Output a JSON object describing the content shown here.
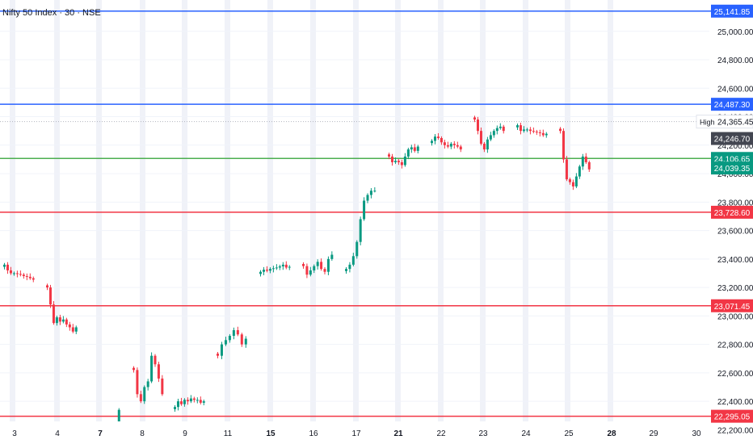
{
  "symbol": {
    "title": "Nifty 50 Index · 30 · NSE"
  },
  "colors": {
    "up": "#089981",
    "down": "#f23645",
    "blue_line": "#2962ff",
    "red_line": "#f23645",
    "green_line": "#4caf50",
    "grid": "#f0f3fa",
    "session_band": "#e9ecf5",
    "axis_text": "#131722"
  },
  "chart_data": {
    "type": "candlestick",
    "title": "Nifty 50 Index · 30 · NSE",
    "ylim": [
      22100,
      25220
    ],
    "y_ticks": [
      "25,000.00",
      "24,800.00",
      "24,600.00",
      "24,400.00",
      "24,200.00",
      "24,000.00",
      "23,800.00",
      "23,600.00",
      "23,400.00",
      "23,200.00",
      "23,000.00",
      "22,800.00",
      "22,600.00",
      "22,400.00",
      "22,200.00"
    ],
    "y_tick_values": [
      25000,
      24800,
      24600,
      24400,
      24200,
      24000,
      23800,
      23600,
      23400,
      23200,
      23000,
      22800,
      22600,
      22400,
      22200
    ],
    "x_ticks": [
      "3",
      "4",
      "7",
      "8",
      "9",
      "11",
      "15",
      "16",
      "17",
      "21",
      "22",
      "23",
      "24",
      "25",
      "28",
      "29",
      "30"
    ],
    "x_ticks_bold": [
      "7",
      "15",
      "21",
      "28"
    ],
    "horizontal_levels": [
      {
        "value": 25141.85,
        "label": "25,141.85",
        "color": "blue"
      },
      {
        "value": 24487.3,
        "label": "24,487.30",
        "color": "blue"
      },
      {
        "value": 24106.65,
        "label": "24,106.65",
        "color": "green"
      },
      {
        "value": 23728.6,
        "label": "23,728.60",
        "color": "red"
      },
      {
        "value": 23071.45,
        "label": "23,071.45",
        "color": "red"
      },
      {
        "value": 22295.05,
        "label": "22,295.05",
        "color": "red"
      }
    ],
    "high": {
      "value": 24365.45,
      "label": "High",
      "value_label": "24,365.45"
    },
    "price_markers": [
      {
        "value": 24246.7,
        "label": "24,246.70",
        "color": "dark"
      },
      {
        "value": 24039.35,
        "label": "24,039.35",
        "color": "teal"
      }
    ],
    "candle_sessions": [
      [
        23360,
        23320,
        23300,
        23300,
        23295,
        23290,
        23280,
        23275,
        23265,
        23255
      ],
      [
        23200,
        23080,
        22950,
        22990,
        22960,
        22975,
        22940,
        22920,
        22890,
        22920
      ],
      [
        22000,
        22130,
        22030,
        22070,
        22010,
        22000,
        22050,
        22100,
        22200,
        22340
      ],
      [
        22620,
        22450,
        22400,
        22500,
        22540,
        22720,
        22660,
        22560,
        22450
      ],
      [
        22360,
        22400,
        22380,
        22410,
        22400,
        22420,
        22410,
        22410,
        22390,
        22400
      ],
      [
        22720,
        22800,
        22830,
        22860,
        22900,
        22870,
        22800,
        22840
      ],
      [
        23310,
        23325,
        23318,
        23330,
        23335,
        23340,
        23348,
        23360,
        23340,
        23345
      ],
      [
        23350,
        23290,
        23320,
        23350,
        23380,
        23330,
        23310,
        23400,
        23430
      ],
      [
        23330,
        23360,
        23420,
        23520,
        23680,
        23810,
        23850,
        23880,
        23880
      ],
      [
        24120,
        24080,
        24090,
        24080,
        24060,
        24120,
        24170,
        24185,
        24160,
        24190
      ],
      [
        24230,
        24260,
        24250,
        24220,
        24200,
        24190,
        24210,
        24200,
        24190,
        24170
      ],
      [
        24380,
        24300,
        24210,
        24170,
        24240,
        24270,
        24300,
        24320,
        24330,
        24300
      ],
      [
        24340,
        24300,
        24310,
        24310,
        24300,
        24295,
        24290,
        24285,
        24270,
        24280
      ],
      [
        24300,
        24100,
        23960,
        23940,
        23910,
        23980,
        24050,
        24120,
        24080,
        24030
      ]
    ]
  }
}
